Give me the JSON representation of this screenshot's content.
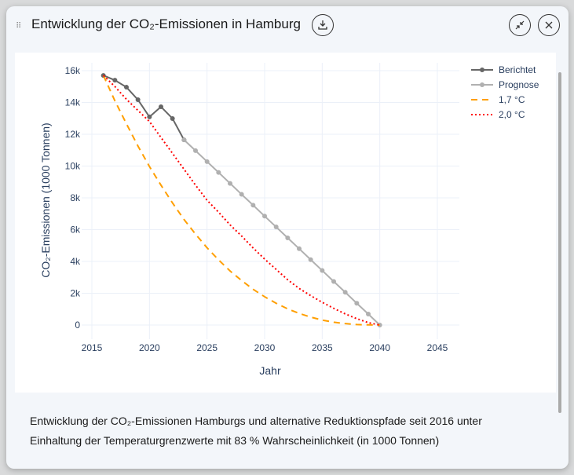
{
  "header": {
    "title": "Entwicklung der CO₂-Emissionen in Hamburg"
  },
  "caption": "Entwicklung der CO₂-Emissionen Hamburgs und alternative Reduktionspfade seit 2016 unter Einhaltung der Temperaturgrenzwerte mit 83 % Wahrscheinlichkeit (in 1000 Tonnen)",
  "chart_data": {
    "type": "line",
    "xlabel": "Jahr",
    "ylabel": "CO₂-Emissionen (1000 Tonnen)",
    "xlim": [
      2015,
      2047
    ],
    "ylim": [
      0,
      16000
    ],
    "xticks": [
      2015,
      2020,
      2025,
      2030,
      2035,
      2040,
      2045
    ],
    "xtick_labels": [
      "2015",
      "2020",
      "2025",
      "2030",
      "2035",
      "2040",
      "2045"
    ],
    "yticks": [
      0,
      2000,
      4000,
      6000,
      8000,
      10000,
      12000,
      14000,
      16000
    ],
    "ytick_labels": [
      "0",
      "2k",
      "4k",
      "6k",
      "8k",
      "10k",
      "12k",
      "14k",
      "16k"
    ],
    "grid": true,
    "legend_position": "top-right",
    "series": [
      {
        "name": "Berichtet",
        "color": "#666666",
        "style": "solid-markers",
        "x": [
          2016,
          2017,
          2018,
          2019,
          2020,
          2021,
          2022,
          2023
        ],
        "values": [
          15700,
          15400,
          14960,
          14170,
          13090,
          13730,
          12990,
          11650
        ]
      },
      {
        "name": "Prognose",
        "color": "#b0b0b0",
        "style": "solid-markers",
        "x": [
          2023,
          2024,
          2025,
          2026,
          2027,
          2028,
          2029,
          2030,
          2031,
          2032,
          2033,
          2034,
          2035,
          2036,
          2037,
          2038,
          2039,
          2040
        ],
        "values": [
          11650,
          10970,
          10280,
          9600,
          8910,
          8220,
          7540,
          6850,
          6170,
          5480,
          4800,
          4110,
          3430,
          2740,
          2060,
          1370,
          690,
          0
        ]
      },
      {
        "name": "1,7 °C",
        "color": "#ff9f00",
        "style": "dash",
        "x": [
          2016,
          2017,
          2018,
          2019,
          2020,
          2021,
          2022,
          2023,
          2024,
          2025,
          2026,
          2027,
          2028,
          2029,
          2030,
          2031,
          2032,
          2033,
          2034,
          2035,
          2036,
          2037,
          2038,
          2039,
          2040
        ],
        "values": [
          15700,
          14100,
          12660,
          11260,
          9970,
          8800,
          7680,
          6640,
          5720,
          4860,
          4100,
          3400,
          2800,
          2250,
          1780,
          1370,
          1020,
          730,
          500,
          310,
          180,
          90,
          30,
          10,
          0
        ]
      },
      {
        "name": "2,0 °C",
        "color": "#ff0000",
        "style": "dot",
        "x": [
          2016,
          2017,
          2018,
          2019,
          2020,
          2021,
          2022,
          2023,
          2024,
          2025,
          2026,
          2027,
          2028,
          2029,
          2030,
          2031,
          2032,
          2033,
          2034,
          2035,
          2036,
          2037,
          2038,
          2039,
          2040
        ],
        "values": [
          15700,
          15000,
          14200,
          13500,
          12800,
          11800,
          10800,
          9800,
          8800,
          7850,
          7100,
          6300,
          5600,
          4850,
          4150,
          3500,
          2850,
          2300,
          1850,
          1430,
          1050,
          700,
          400,
          150,
          0
        ]
      }
    ]
  }
}
